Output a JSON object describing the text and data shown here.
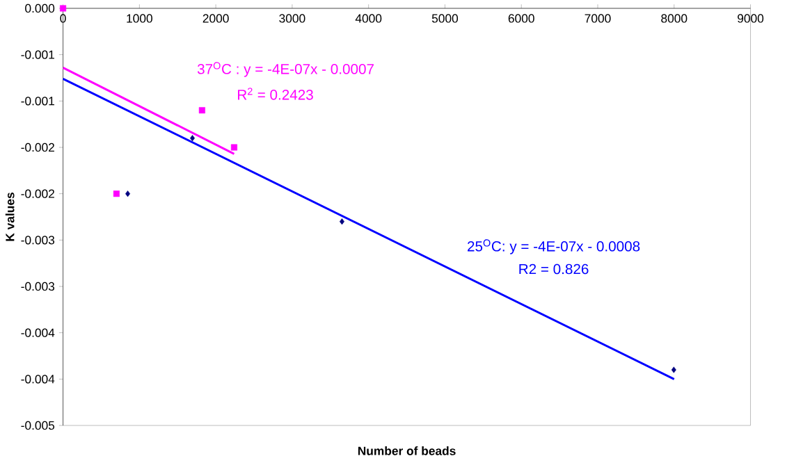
{
  "chart_data": {
    "type": "scatter",
    "xlabel": "Number of beads",
    "ylabel": "K values",
    "xlim": [
      0,
      9000
    ],
    "xticks": [
      0,
      1000,
      2000,
      3000,
      4000,
      5000,
      6000,
      7000,
      8000,
      9000
    ],
    "ylim": [
      -0.0045,
      0
    ],
    "yticks": [
      {
        "value": 0,
        "label": "0.000"
      },
      {
        "value": -0.0005,
        "label": "-0.001"
      },
      {
        "value": -0.001,
        "label": "-0.001"
      },
      {
        "value": -0.0015,
        "label": "-0.002"
      },
      {
        "value": -0.002,
        "label": "-0.002"
      },
      {
        "value": -0.0025,
        "label": "-0.003"
      },
      {
        "value": -0.003,
        "label": "-0.003"
      },
      {
        "value": -0.0035,
        "label": "-0.004"
      },
      {
        "value": -0.004,
        "label": "-0.004"
      },
      {
        "value": -0.0045,
        "label": "-0.005"
      }
    ],
    "series": [
      {
        "marker": "square",
        "color": "#ff00ff",
        "x": [
          0,
          700,
          1820,
          2240
        ],
        "values": [
          0,
          -0.002,
          -0.0011,
          -0.0015
        ]
      },
      {
        "type": "line",
        "marker": "none",
        "color": "#ff00ff",
        "x": [
          0,
          2240
        ],
        "values": [
          -0.00064,
          -0.00157
        ]
      },
      {
        "marker": "diamond",
        "color": "#000080",
        "x": [
          847,
          1694,
          3652,
          7996
        ],
        "values": [
          -0.002,
          -0.0014,
          -0.0023,
          -0.0039
        ]
      },
      {
        "type": "line",
        "marker": "none",
        "color": "#0000ff",
        "x": [
          0,
          8000
        ],
        "values": [
          -0.00076,
          -0.004
        ]
      }
    ],
    "annotations": [
      "37$^{O}$C : y = -4E-07x - 0.0007",
      "R$^{2}$ = 0.2423",
      "25$^{O}$C: y = -4E-07x - 0.0008",
      "R2 =  0.826"
    ]
  }
}
